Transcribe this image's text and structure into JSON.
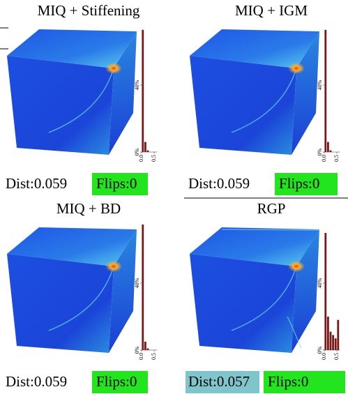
{
  "chart_data": [
    {
      "type": "histogram",
      "title": "MIQ + Stiffening",
      "distance_label": "Dist:0.059",
      "flips_label": "Flips:0",
      "flips_highlight": "#22e51e",
      "bins": [
        0,
        0.1,
        0.2,
        0.3,
        0.4,
        0.5,
        0.6
      ],
      "values": [
        73,
        6,
        1,
        0,
        0,
        0
      ],
      "color": "#7a1616",
      "ylim": [
        0,
        75
      ],
      "yticks": [
        {
          "value": 0,
          "label": "0%"
        },
        {
          "value": 40,
          "label": "40%"
        }
      ],
      "xlim": [
        0,
        0.6
      ],
      "xticks": [
        {
          "value": 0,
          "label": "0.0"
        },
        {
          "value": 0.5,
          "label": "0.5"
        }
      ]
    },
    {
      "type": "histogram",
      "title": "MIQ + IGM",
      "distance_label": "Dist:0.059",
      "flips_label": "Flips:0",
      "flips_highlight": "#22e51e",
      "bins": [
        0,
        0.1,
        0.2,
        0.3,
        0.4,
        0.5,
        0.6
      ],
      "values": [
        73,
        6,
        1,
        0,
        0,
        0
      ],
      "color": "#7a1616",
      "ylim": [
        0,
        75
      ],
      "yticks": [
        {
          "value": 0,
          "label": "0%"
        },
        {
          "value": 40,
          "label": "40%"
        }
      ],
      "xlim": [
        0,
        0.6
      ],
      "xticks": [
        {
          "value": 0,
          "label": "0.0"
        },
        {
          "value": 0.5,
          "label": "0.5"
        }
      ]
    },
    {
      "type": "histogram",
      "title": "MIQ + BD",
      "distance_label": "Dist:0.059",
      "flips_label": "Flips:0",
      "flips_highlight": "#22e51e",
      "bins": [
        0,
        0.1,
        0.2,
        0.3,
        0.4,
        0.5,
        0.6
      ],
      "values": [
        75,
        5,
        1,
        0,
        0,
        0
      ],
      "color": "#7a1616",
      "ylim": [
        0,
        75
      ],
      "yticks": [
        {
          "value": 0,
          "label": "0%"
        },
        {
          "value": 40,
          "label": "40%"
        }
      ],
      "xlim": [
        0,
        0.6
      ],
      "xticks": [
        {
          "value": 0,
          "label": "0.0"
        },
        {
          "value": 0.5,
          "label": "0.5"
        }
      ]
    },
    {
      "type": "histogram",
      "title": "RGP",
      "distance_label": "Dist:0.057",
      "dist_highlight": "#7fc6cc",
      "flips_label": "Flips:0",
      "flips_highlight": "#22e51e",
      "bins": [
        0,
        0.1,
        0.2,
        0.3,
        0.4,
        0.5,
        0.6
      ],
      "values": [
        70,
        20,
        11,
        9,
        7,
        18
      ],
      "color": "#7a1616",
      "ylim": [
        0,
        75
      ],
      "yticks": [
        {
          "value": 0,
          "label": "0%"
        },
        {
          "value": 40,
          "label": "40%"
        }
      ],
      "xlim": [
        0,
        0.6
      ],
      "xticks": [
        {
          "value": 0,
          "label": "0.0"
        },
        {
          "value": 0.5,
          "label": "0.5"
        }
      ]
    }
  ]
}
